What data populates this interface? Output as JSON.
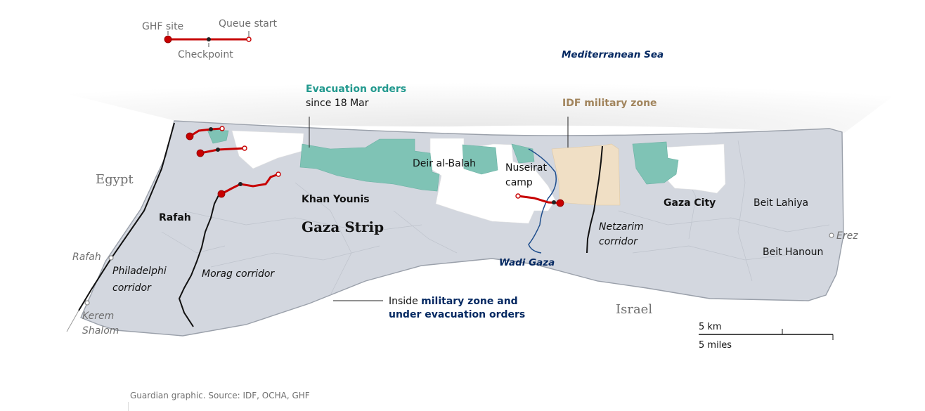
{
  "legend": {
    "ghf_site": "GHF site",
    "queue_start": "Queue start",
    "checkpoint": "Checkpoint",
    "route_color": "#c70000",
    "checkpoint_color": "#222222"
  },
  "sea_label": "Mediterranean Sea",
  "evacuation": {
    "title": "Evacuation orders",
    "since": "since 18 Mar",
    "color": "#7fc3b5"
  },
  "idf_zone": {
    "title": "IDF military zone",
    "color": "#f0dfc5"
  },
  "countries": {
    "egypt": "Egypt",
    "israel": "Israel"
  },
  "places": {
    "rafah_city": "Rafah",
    "khan_younis": "Khan Younis",
    "gaza_strip": "Gaza Strip",
    "deir_al_balah": "Deir al-Balah",
    "nuseirat_line1": "Nuseirat",
    "nuseirat_line2": "camp",
    "gaza_city": "Gaza City",
    "beit_lahiya": "Beit Lahiya",
    "beit_hanoun": "Beit Hanoun"
  },
  "corridors": {
    "philadelphi_line1": "Philadelphi",
    "philadelphi_line2": "corridor",
    "morag": "Morag corridor",
    "netzarim_line1": "Netzarim",
    "netzarim_line2": "corridor"
  },
  "wadi_gaza": "Wadi Gaza",
  "crossings": {
    "rafah": "Rafah",
    "kerem_line1": "Kerem",
    "kerem_line2": "Shalom",
    "erez": "Erez"
  },
  "inside_note": {
    "prefix": "Inside ",
    "bold_line1": "military zone and",
    "bold_line2": "under evacuation orders",
    "zone_color": "#d2d6de"
  },
  "scale": {
    "km": "5 km",
    "miles": "5 miles"
  },
  "credit": "Guardian graphic. Source: IDF, OCHA, GHF",
  "colors": {
    "accent_blue": "#052962",
    "teal_text": "#22998e",
    "tan_text": "#a1845c"
  }
}
